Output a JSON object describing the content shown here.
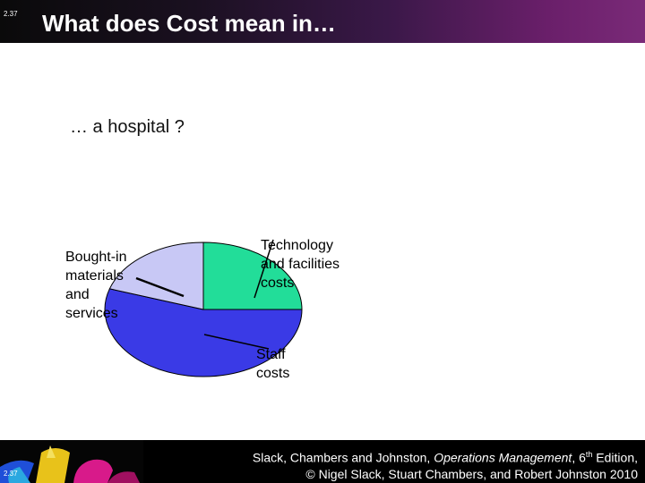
{
  "slide": {
    "number": "2.37",
    "title": "What does Cost mean in…",
    "subtitle": "… a  hospital ?"
  },
  "chart_data": {
    "type": "pie",
    "title": "",
    "slices": [
      {
        "label": "Technology and facilities costs",
        "value": 25,
        "color": "#22dd99"
      },
      {
        "label": "Staff costs",
        "value": 55,
        "color": "#3a3ae6"
      },
      {
        "label": "Bought-in materials and services",
        "value": 20,
        "color": "#c8c8f5"
      }
    ]
  },
  "labels": {
    "bought": "Bought-in\nmaterials\nand\nservices",
    "tech": "Technology\nand facilities\ncosts",
    "staff": "Staff\ncosts"
  },
  "footer": {
    "authors": "Slack, Chambers and Johnston, ",
    "book": "Operations Management",
    "edition_num": ", 6",
    "edition_sup": "th",
    "edition_rest": " Edition,",
    "copyright": "© Nigel Slack, Stuart Chambers, and Robert Johnston 2010"
  }
}
